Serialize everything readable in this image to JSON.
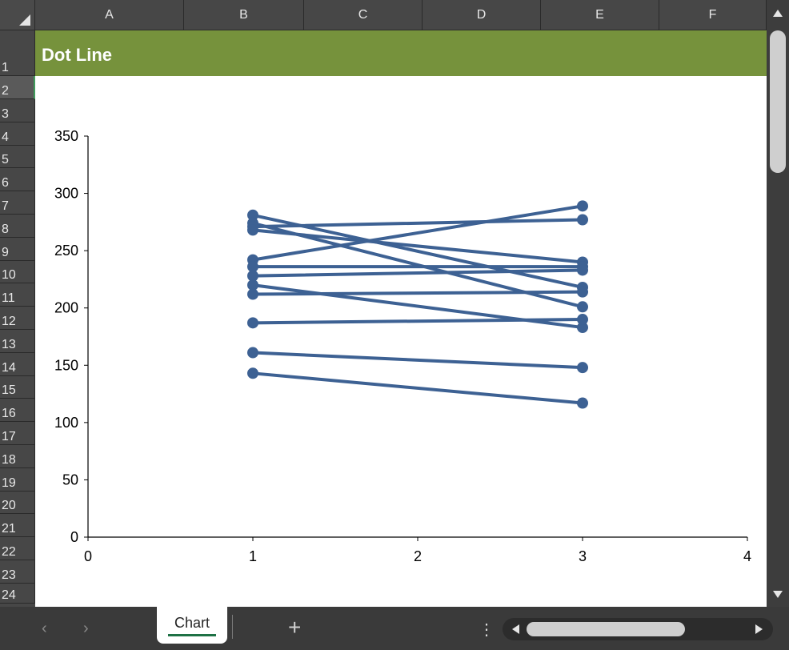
{
  "sheet": {
    "columns": [
      "A",
      "B",
      "C",
      "D",
      "E",
      "F"
    ],
    "rows": [
      "1",
      "2",
      "3",
      "4",
      "5",
      "6",
      "7",
      "8",
      "9",
      "10",
      "11",
      "12",
      "13",
      "14",
      "15",
      "16",
      "17",
      "18",
      "19",
      "20",
      "21",
      "22",
      "23",
      "24"
    ],
    "title": "Dot Line",
    "title_band_color": "#76923c"
  },
  "tabs": {
    "nav_prev": "‹",
    "nav_next": "›",
    "active": "Chart",
    "add": "+",
    "more": "⋮"
  },
  "icons": {
    "select_all": "select-all-triangle-icon",
    "scroll_up": "triangle-up-icon",
    "scroll_down": "triangle-down-icon",
    "scroll_left": "triangle-left-icon",
    "scroll_right": "triangle-right-icon"
  },
  "chart_data": {
    "type": "line",
    "title": "",
    "xlabel": "",
    "ylabel": "",
    "xlim": [
      0,
      4
    ],
    "ylim": [
      0,
      350
    ],
    "x_ticks": [
      "0",
      "1",
      "2",
      "3",
      "4"
    ],
    "y_ticks": [
      "0",
      "50",
      "100",
      "150",
      "200",
      "250",
      "300",
      "350"
    ],
    "grid": false,
    "legend": "none",
    "series_color": "#3d6193",
    "series": [
      {
        "x": [
          1,
          3
        ],
        "y": [
          281,
          218
        ]
      },
      {
        "x": [
          1,
          3
        ],
        "y": [
          274,
          201
        ]
      },
      {
        "x": [
          1,
          3
        ],
        "y": [
          271,
          277
        ]
      },
      {
        "x": [
          1,
          3
        ],
        "y": [
          268,
          240
        ]
      },
      {
        "x": [
          1,
          3
        ],
        "y": [
          242,
          289
        ]
      },
      {
        "x": [
          1,
          3
        ],
        "y": [
          236,
          236
        ]
      },
      {
        "x": [
          1,
          3
        ],
        "y": [
          228,
          233
        ]
      },
      {
        "x": [
          1,
          3
        ],
        "y": [
          220,
          183
        ]
      },
      {
        "x": [
          1,
          3
        ],
        "y": [
          212,
          214
        ]
      },
      {
        "x": [
          1,
          3
        ],
        "y": [
          187,
          190
        ]
      },
      {
        "x": [
          1,
          3
        ],
        "y": [
          161,
          148
        ]
      },
      {
        "x": [
          1,
          3
        ],
        "y": [
          143,
          117
        ]
      }
    ]
  }
}
